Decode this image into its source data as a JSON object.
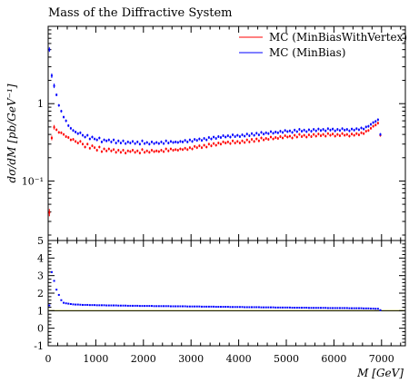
{
  "chart_data": {
    "type": "scatter",
    "title": "Mass of the Diffractive System",
    "xlabel": "M [GeV]",
    "ylabel": "dσ/dM [pb/GeV⁻¹]",
    "xlim": [
      0,
      7500
    ],
    "ylim": [
      0.017,
      10
    ],
    "yscale": "log",
    "ratio_ylim": [
      -1,
      5
    ],
    "x_ticks": [
      "0",
      "1000",
      "2000",
      "3000",
      "4000",
      "5000",
      "6000",
      "7000"
    ],
    "y_ticks": [
      "10⁻¹",
      "1"
    ],
    "ratio_ticks": [
      "-1",
      "0",
      "1",
      "2",
      "3",
      "4",
      "5"
    ],
    "legend_position": "top-right",
    "colors": {
      "MinBiasWithVertex": "#ff0000",
      "MinBias": "#0000ff",
      "reference": "#ffff00"
    },
    "x": [
      25,
      75,
      125,
      175,
      225,
      275,
      325,
      375,
      425,
      475,
      525,
      575,
      625,
      675,
      725,
      775,
      825,
      875,
      925,
      975,
      1025,
      1075,
      1125,
      1175,
      1225,
      1275,
      1325,
      1375,
      1425,
      1475,
      1525,
      1575,
      1625,
      1675,
      1725,
      1775,
      1825,
      1875,
      1925,
      1975,
      2025,
      2075,
      2125,
      2175,
      2225,
      2275,
      2325,
      2375,
      2425,
      2475,
      2525,
      2575,
      2625,
      2675,
      2725,
      2775,
      2825,
      2875,
      2925,
      2975,
      3025,
      3075,
      3125,
      3175,
      3225,
      3275,
      3325,
      3375,
      3425,
      3475,
      3525,
      3575,
      3625,
      3675,
      3725,
      3775,
      3825,
      3875,
      3925,
      3975,
      4025,
      4075,
      4125,
      4175,
      4225,
      4275,
      4325,
      4375,
      4425,
      4475,
      4525,
      4575,
      4625,
      4675,
      4725,
      4775,
      4825,
      4875,
      4925,
      4975,
      5025,
      5075,
      5125,
      5175,
      5225,
      5275,
      5325,
      5375,
      5425,
      5475,
      5525,
      5575,
      5625,
      5675,
      5725,
      5775,
      5825,
      5875,
      5925,
      5975,
      6025,
      6075,
      6125,
      6175,
      6225,
      6275,
      6325,
      6375,
      6425,
      6475,
      6525,
      6575,
      6625,
      6675,
      6725,
      6775,
      6825,
      6875,
      6925,
      6975
    ],
    "series": [
      {
        "name": "MC (MinBiasWithVertex)",
        "values": [
          0.039,
          0.36,
          0.495,
          0.46,
          0.425,
          0.42,
          0.4,
          0.375,
          0.365,
          0.34,
          0.345,
          0.325,
          0.31,
          0.325,
          0.3,
          0.275,
          0.3,
          0.265,
          0.285,
          0.27,
          0.25,
          0.275,
          0.24,
          0.26,
          0.245,
          0.26,
          0.245,
          0.255,
          0.235,
          0.25,
          0.235,
          0.25,
          0.23,
          0.245,
          0.24,
          0.25,
          0.235,
          0.245,
          0.23,
          0.255,
          0.235,
          0.245,
          0.235,
          0.25,
          0.24,
          0.245,
          0.24,
          0.25,
          0.24,
          0.26,
          0.245,
          0.26,
          0.25,
          0.255,
          0.25,
          0.26,
          0.255,
          0.265,
          0.255,
          0.27,
          0.26,
          0.28,
          0.27,
          0.285,
          0.27,
          0.29,
          0.275,
          0.3,
          0.285,
          0.305,
          0.29,
          0.31,
          0.3,
          0.32,
          0.31,
          0.32,
          0.305,
          0.33,
          0.31,
          0.325,
          0.31,
          0.33,
          0.315,
          0.34,
          0.32,
          0.345,
          0.325,
          0.35,
          0.33,
          0.36,
          0.34,
          0.355,
          0.345,
          0.37,
          0.35,
          0.365,
          0.355,
          0.375,
          0.36,
          0.385,
          0.37,
          0.38,
          0.36,
          0.39,
          0.37,
          0.4,
          0.375,
          0.39,
          0.37,
          0.395,
          0.375,
          0.4,
          0.38,
          0.405,
          0.385,
          0.4,
          0.38,
          0.41,
          0.39,
          0.405,
          0.38,
          0.4,
          0.385,
          0.41,
          0.39,
          0.4,
          0.38,
          0.405,
          0.39,
          0.41,
          0.395,
          0.42,
          0.41,
          0.44,
          0.45,
          0.48,
          0.51,
          0.53,
          0.56,
          0.39
        ]
      },
      {
        "name": "MC (MinBias)",
        "values": [
          5.0,
          2.3,
          1.7,
          1.3,
          0.95,
          0.8,
          0.67,
          0.6,
          0.52,
          0.48,
          0.45,
          0.43,
          0.41,
          0.42,
          0.39,
          0.37,
          0.39,
          0.35,
          0.37,
          0.35,
          0.34,
          0.36,
          0.32,
          0.34,
          0.33,
          0.34,
          0.32,
          0.34,
          0.31,
          0.33,
          0.31,
          0.33,
          0.305,
          0.32,
          0.31,
          0.325,
          0.305,
          0.32,
          0.3,
          0.33,
          0.305,
          0.315,
          0.3,
          0.32,
          0.305,
          0.315,
          0.305,
          0.32,
          0.305,
          0.33,
          0.31,
          0.325,
          0.315,
          0.32,
          0.315,
          0.325,
          0.32,
          0.335,
          0.32,
          0.34,
          0.325,
          0.345,
          0.335,
          0.35,
          0.335,
          0.355,
          0.34,
          0.365,
          0.35,
          0.37,
          0.355,
          0.375,
          0.365,
          0.385,
          0.37,
          0.385,
          0.37,
          0.395,
          0.375,
          0.39,
          0.375,
          0.395,
          0.38,
          0.405,
          0.385,
          0.41,
          0.39,
          0.415,
          0.395,
          0.425,
          0.405,
          0.42,
          0.41,
          0.435,
          0.415,
          0.43,
          0.42,
          0.44,
          0.425,
          0.45,
          0.435,
          0.445,
          0.425,
          0.455,
          0.435,
          0.465,
          0.44,
          0.455,
          0.435,
          0.46,
          0.44,
          0.465,
          0.445,
          0.47,
          0.45,
          0.465,
          0.445,
          0.475,
          0.455,
          0.47,
          0.445,
          0.465,
          0.45,
          0.475,
          0.455,
          0.465,
          0.445,
          0.47,
          0.455,
          0.475,
          0.46,
          0.485,
          0.47,
          0.5,
          0.51,
          0.54,
          0.57,
          0.59,
          0.62,
          0.4
        ]
      }
    ],
    "ratio": {
      "reference_value": 1,
      "reference_band": [
        0.97,
        1.03
      ],
      "values": [
        1.3,
        3.2,
        2.7,
        2.2,
        1.9,
        1.6,
        1.45,
        1.42,
        1.4,
        1.38,
        1.36,
        1.35,
        1.35,
        1.34,
        1.33,
        1.33,
        1.33,
        1.32,
        1.32,
        1.32,
        1.31,
        1.31,
        1.31,
        1.31,
        1.3,
        1.3,
        1.3,
        1.3,
        1.3,
        1.29,
        1.29,
        1.29,
        1.29,
        1.28,
        1.28,
        1.28,
        1.28,
        1.28,
        1.27,
        1.27,
        1.27,
        1.27,
        1.27,
        1.27,
        1.26,
        1.26,
        1.26,
        1.26,
        1.26,
        1.26,
        1.26,
        1.25,
        1.25,
        1.25,
        1.25,
        1.25,
        1.25,
        1.25,
        1.24,
        1.24,
        1.24,
        1.24,
        1.24,
        1.24,
        1.23,
        1.23,
        1.23,
        1.23,
        1.23,
        1.23,
        1.22,
        1.22,
        1.22,
        1.22,
        1.22,
        1.22,
        1.21,
        1.21,
        1.21,
        1.21,
        1.21,
        1.21,
        1.2,
        1.2,
        1.2,
        1.2,
        1.2,
        1.2,
        1.2,
        1.19,
        1.19,
        1.19,
        1.19,
        1.19,
        1.19,
        1.18,
        1.18,
        1.18,
        1.18,
        1.18,
        1.18,
        1.18,
        1.17,
        1.17,
        1.17,
        1.17,
        1.17,
        1.17,
        1.17,
        1.16,
        1.16,
        1.16,
        1.16,
        1.16,
        1.16,
        1.16,
        1.16,
        1.15,
        1.15,
        1.15,
        1.15,
        1.15,
        1.15,
        1.15,
        1.15,
        1.15,
        1.14,
        1.14,
        1.14,
        1.14,
        1.14,
        1.14,
        1.13,
        1.13,
        1.13,
        1.12,
        1.12,
        1.11,
        1.11,
        1.03
      ]
    }
  }
}
